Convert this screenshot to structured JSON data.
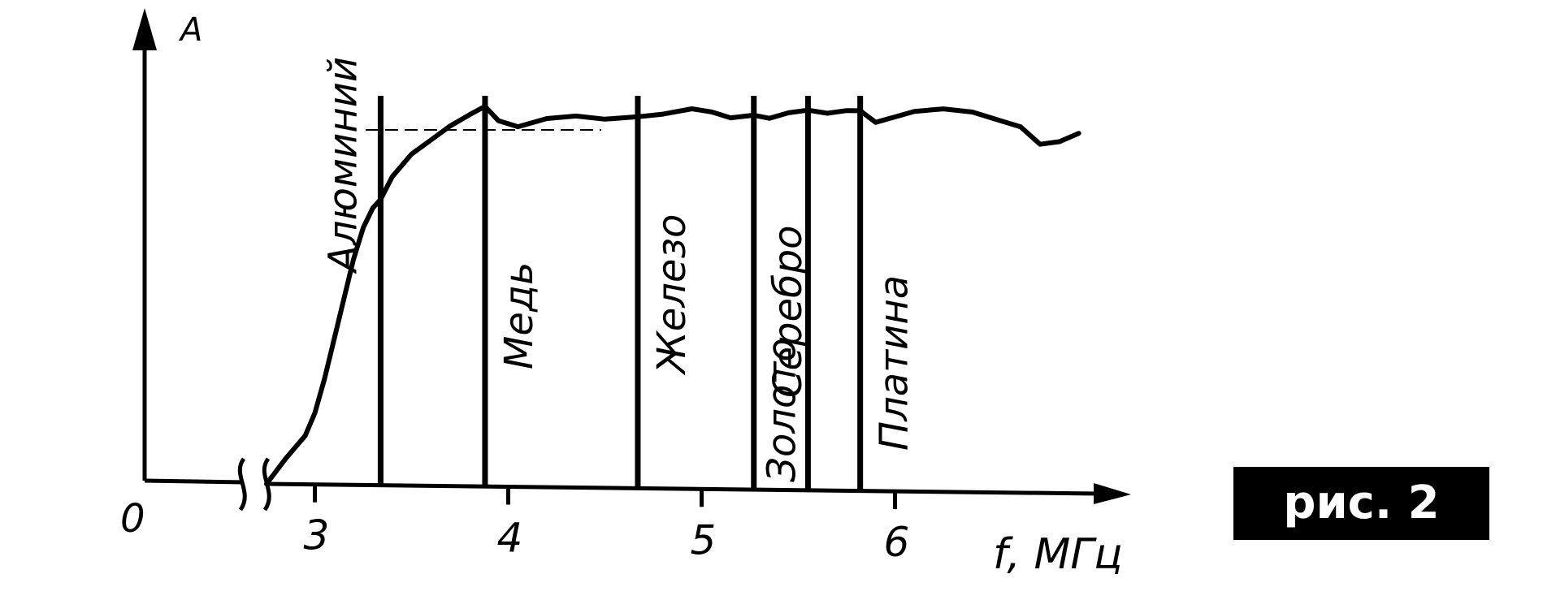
{
  "figure_label": "рис. 2",
  "chart_data": {
    "type": "line",
    "ylabel": "A",
    "xlabel": "f, МГц",
    "origin_label": "0",
    "x_ticks": [
      3,
      4,
      5,
      6
    ],
    "xlim": [
      2.4,
      6.95
    ],
    "ylim": [
      0,
      1.3
    ],
    "axis_break": true,
    "reference_level": 1.0,
    "series": [
      {
        "x": [
          2.75,
          2.85,
          2.95,
          3.0,
          3.05,
          3.1,
          3.15,
          3.2,
          3.25,
          3.3,
          3.34,
          3.4,
          3.5,
          3.6,
          3.7,
          3.8,
          3.88,
          3.95,
          4.05,
          4.2,
          4.35,
          4.5,
          4.67,
          4.8,
          4.95,
          5.05,
          5.15,
          5.27,
          5.35,
          5.45,
          5.55,
          5.65,
          5.75,
          5.82,
          5.9,
          6.0,
          6.1,
          6.25,
          6.4,
          6.55,
          6.65,
          6.75,
          6.85,
          6.95
        ],
        "y": [
          0.0,
          0.09,
          0.17,
          0.25,
          0.37,
          0.51,
          0.65,
          0.79,
          0.9,
          0.97,
          1.0,
          1.08,
          1.16,
          1.21,
          1.26,
          1.3,
          1.33,
          1.28,
          1.26,
          1.29,
          1.3,
          1.29,
          1.3,
          1.31,
          1.33,
          1.32,
          1.3,
          1.31,
          1.3,
          1.32,
          1.33,
          1.32,
          1.33,
          1.33,
          1.29,
          1.31,
          1.33,
          1.34,
          1.33,
          1.3,
          1.28,
          1.22,
          1.23,
          1.26
        ]
      }
    ],
    "markers": [
      {
        "label": "Алюминий",
        "x": 3.34
      },
      {
        "label": "Медь",
        "x": 3.88
      },
      {
        "label": "Железо",
        "x": 4.67
      },
      {
        "label": "Серебро",
        "x": 5.27
      },
      {
        "label": "Золото",
        "x": 5.55
      },
      {
        "label": "Платина",
        "x": 5.82
      }
    ]
  }
}
